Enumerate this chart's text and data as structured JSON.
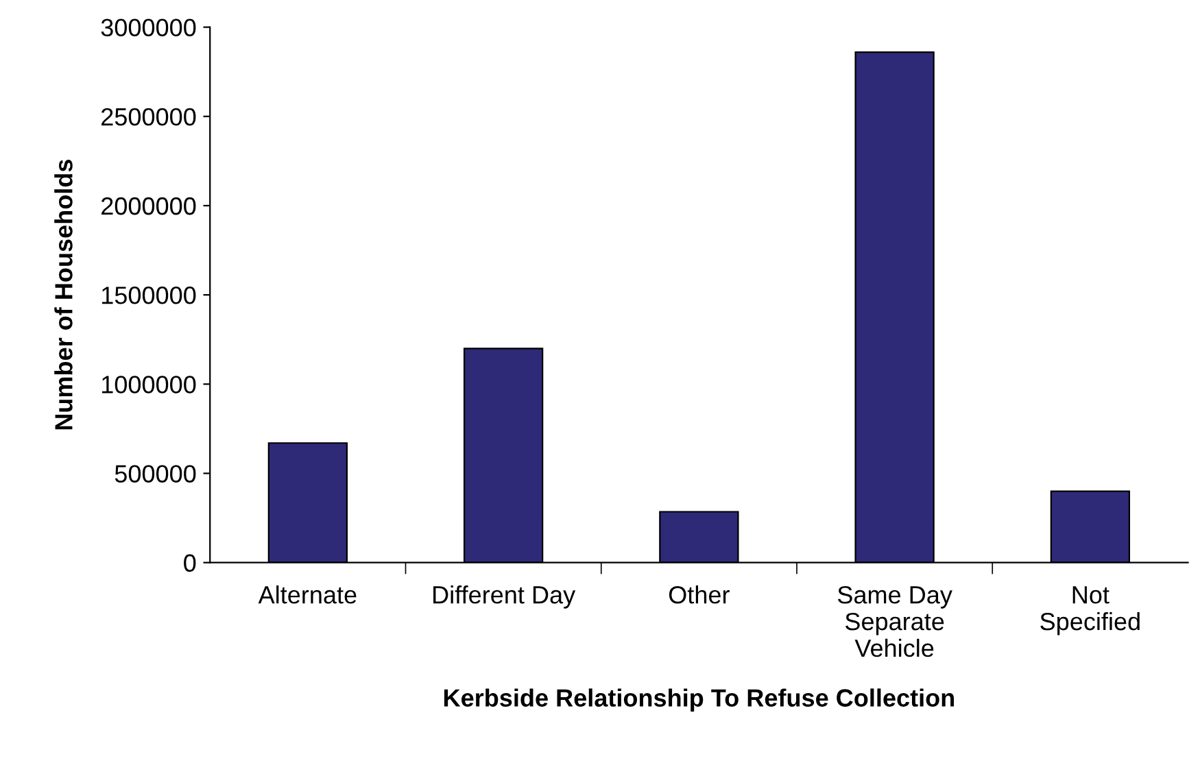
{
  "chart_data": {
    "type": "bar",
    "xlabel": "Kerbside Relationship To Refuse Collection",
    "ylabel": "Number of Households",
    "categories": [
      "Alternate",
      "Different Day",
      "Other",
      "Same Day\nSeparate\nVehicle",
      "Not\nSpecified"
    ],
    "values": [
      670000,
      1200000,
      285000,
      2860000,
      400000
    ],
    "color": "#2e2a78",
    "ylim": [
      0,
      3000000
    ],
    "yticks": [
      0,
      500000,
      1000000,
      1500000,
      2000000,
      2500000,
      3000000
    ],
    "grid": false
  }
}
